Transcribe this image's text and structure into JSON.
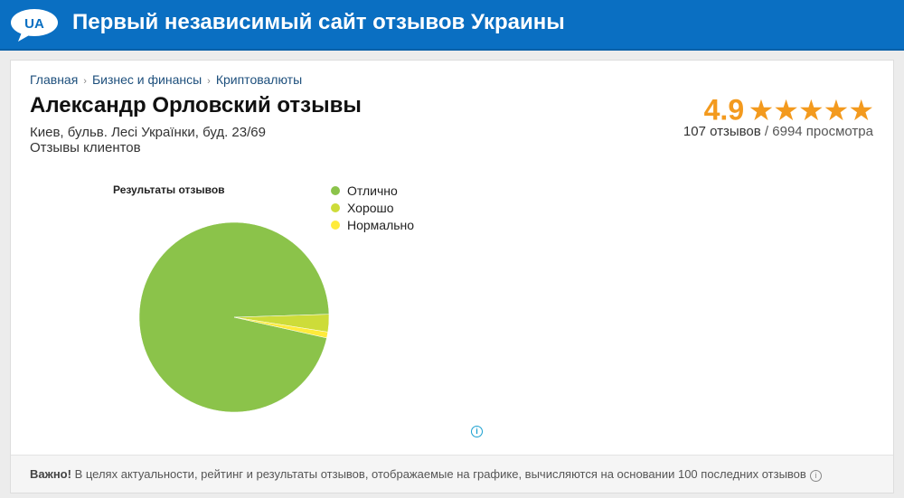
{
  "header": {
    "logo_text": "UA",
    "title": "Первый независимый сайт отзывов Украины"
  },
  "breadcrumb": [
    "Главная",
    "Бизнес и финансы",
    "Криптовалюты"
  ],
  "page": {
    "title": "Александр Орловский отзывы",
    "address": "Киев, бульв. Лесі Українки, буд. 23/69",
    "subtitle": "Отзывы клиентов"
  },
  "rating": {
    "value": "4.9",
    "stars": 5,
    "reviews": "107 отзывов",
    "views": "6994 просмотра",
    "separator": "/",
    "color": "#f39a1e"
  },
  "chart_data": {
    "type": "pie",
    "title": "Результаты отзывов",
    "legend": "right",
    "categories": [
      "Отлично",
      "Хорошо",
      "Нормально"
    ],
    "values": [
      96,
      3,
      1
    ],
    "colors": [
      "#8bc34a",
      "#cddc39",
      "#ffeb3b"
    ]
  },
  "footer": {
    "strong": "Важно!",
    "text": "В целях актуальности, рейтинг и результаты отзывов, отображаемые на графике, вычисляются на основании 100 последних отзывов"
  }
}
